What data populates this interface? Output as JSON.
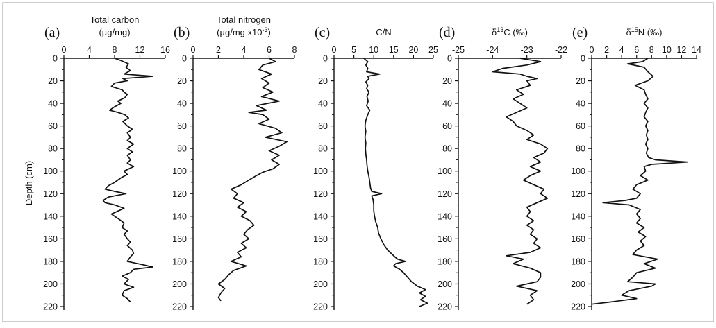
{
  "figure": {
    "y_axis_label": "Depth (cm)"
  },
  "chart_data": [
    {
      "type": "line",
      "panel": "(a)",
      "title": "Total carbon",
      "subtitle": "(µg/mg)",
      "xlim": [
        0,
        16
      ],
      "xticks": [
        0,
        4,
        8,
        12,
        16
      ],
      "ylim": [
        0,
        220
      ],
      "yticks": [
        0,
        20,
        40,
        60,
        80,
        100,
        120,
        140,
        160,
        180,
        200,
        220
      ],
      "series": [
        {
          "depth": [
            0,
            2,
            5,
            8,
            11,
            14,
            16,
            18,
            20,
            22,
            25,
            28,
            30,
            32,
            35,
            38,
            40,
            43,
            46,
            48,
            50,
            53,
            56,
            60,
            63,
            66,
            70,
            73,
            76,
            80,
            83,
            86,
            90,
            93,
            96,
            100,
            103,
            106,
            110,
            113,
            116,
            118,
            120,
            123,
            126,
            128,
            130,
            133,
            136,
            138,
            140,
            143,
            146,
            150,
            153,
            156,
            160,
            163,
            166,
            170,
            173,
            176,
            180,
            183,
            185,
            187,
            190,
            193,
            196,
            200,
            203,
            206,
            210,
            213,
            216
          ],
          "value": [
            8.0,
            9.0,
            10.2,
            9.8,
            10.5,
            9.5,
            14.0,
            9.3,
            10.0,
            8.0,
            7.5,
            9.2,
            9.5,
            10.0,
            9.6,
            8.5,
            9.0,
            8.0,
            7.2,
            8.5,
            9.6,
            10.2,
            9.3,
            10.0,
            10.8,
            10.0,
            10.5,
            10.0,
            11.0,
            10.0,
            10.8,
            10.0,
            10.5,
            10.0,
            11.0,
            9.5,
            10.0,
            9.0,
            8.0,
            7.0,
            6.5,
            8.0,
            9.8,
            7.0,
            6.2,
            6.5,
            8.0,
            9.5,
            8.3,
            7.5,
            8.0,
            8.8,
            9.5,
            9.2,
            10.0,
            9.5,
            10.0,
            10.5,
            10.0,
            10.8,
            11.0,
            10.5,
            10.0,
            12.5,
            14.0,
            11.0,
            10.5,
            9.2,
            10.2,
            9.5,
            11.0,
            9.5,
            9.2,
            10.0,
            10.5
          ]
        }
      ]
    },
    {
      "type": "line",
      "panel": "(b)",
      "title": "Total nitrogen",
      "subtitle": "(µg/mg x10",
      "subtitle_sup": "-3",
      "subtitle_end": ")",
      "xlim": [
        0,
        8
      ],
      "xticks": [
        0,
        2,
        4,
        6,
        8
      ],
      "ylim": [
        0,
        220
      ],
      "yticks": [
        0,
        20,
        40,
        60,
        80,
        100,
        120,
        140,
        160,
        180,
        200,
        220
      ],
      "series": [
        {
          "depth": [
            0,
            3,
            6,
            10,
            14,
            18,
            22,
            26,
            30,
            34,
            38,
            42,
            46,
            48,
            50,
            54,
            58,
            62,
            66,
            70,
            74,
            78,
            82,
            86,
            90,
            94,
            98,
            101,
            104,
            108,
            112,
            116,
            120,
            124,
            128,
            132,
            136,
            140,
            144,
            148,
            152,
            156,
            160,
            164,
            168,
            172,
            176,
            180,
            184,
            188,
            192,
            196,
            200,
            204,
            208,
            212,
            215
          ],
          "value": [
            6.0,
            6.5,
            5.5,
            5.2,
            6.2,
            5.4,
            6.0,
            5.5,
            6.3,
            5.4,
            6.8,
            5.0,
            5.8,
            4.4,
            5.5,
            6.0,
            5.2,
            6.5,
            7.0,
            5.7,
            7.4,
            6.8,
            6.0,
            6.8,
            6.2,
            6.8,
            6.3,
            5.5,
            5.0,
            4.4,
            3.8,
            3.0,
            3.5,
            3.2,
            4.0,
            3.5,
            4.2,
            3.8,
            4.5,
            4.8,
            4.3,
            4.0,
            4.4,
            3.8,
            4.2,
            3.5,
            3.8,
            3.0,
            4.2,
            3.2,
            2.8,
            2.5,
            2.0,
            2.5,
            2.2,
            2.0,
            2.2
          ]
        }
      ]
    },
    {
      "type": "line",
      "panel": "(c)",
      "title": "C/N",
      "xlim": [
        0,
        25
      ],
      "xticks": [
        0,
        5,
        10,
        15,
        20,
        25
      ],
      "ylim": [
        0,
        220
      ],
      "yticks": [
        0,
        20,
        40,
        60,
        80,
        100,
        120,
        140,
        160,
        180,
        200,
        220
      ],
      "series": [
        {
          "depth": [
            0,
            3,
            6,
            9,
            12,
            14,
            16,
            18,
            21,
            24,
            27,
            30,
            34,
            38,
            42,
            46,
            50,
            55,
            60,
            65,
            70,
            75,
            80,
            85,
            90,
            95,
            100,
            105,
            110,
            115,
            118,
            120,
            122,
            125,
            130,
            135,
            140,
            145,
            150,
            155,
            160,
            165,
            170,
            175,
            178,
            180,
            182,
            184,
            187,
            190,
            194,
            198,
            202,
            205,
            208,
            211,
            214,
            217,
            220
          ],
          "value": [
            7.5,
            8.5,
            8.0,
            8.5,
            8.2,
            11.5,
            8.5,
            8.8,
            8.0,
            8.5,
            8.2,
            8.8,
            8.3,
            8.6,
            8.2,
            9.0,
            8.5,
            8.0,
            7.8,
            8.0,
            7.8,
            8.0,
            7.9,
            8.0,
            8.2,
            8.3,
            8.5,
            8.8,
            9.0,
            9.2,
            9.5,
            12.0,
            9.5,
            9.8,
            10.0,
            10.0,
            10.2,
            10.5,
            11.0,
            11.2,
            11.8,
            12.5,
            13.5,
            15.0,
            16.0,
            18.0,
            15.5,
            15.0,
            16.5,
            17.5,
            18.5,
            19.5,
            21.0,
            23.0,
            21.5,
            23.0,
            21.8,
            23.5,
            21.5
          ]
        }
      ]
    },
    {
      "type": "line",
      "panel": "(d)",
      "title": "δ",
      "title_sup": "13",
      "title_end": "C (‰)",
      "xlim": [
        -25,
        -22
      ],
      "xticks": [
        -25,
        -24,
        -23,
        -22
      ],
      "ylim": [
        0,
        220
      ],
      "yticks": [
        0,
        20,
        40,
        60,
        80,
        100,
        120,
        140,
        160,
        180,
        200,
        220
      ],
      "series": [
        {
          "depth": [
            0,
            3,
            6,
            9,
            12,
            14,
            16,
            18,
            20,
            24,
            28,
            32,
            36,
            40,
            44,
            48,
            52,
            56,
            60,
            64,
            68,
            72,
            76,
            80,
            84,
            88,
            92,
            96,
            100,
            104,
            108,
            112,
            116,
            120,
            124,
            128,
            132,
            136,
            140,
            144,
            148,
            152,
            156,
            160,
            164,
            168,
            172,
            175,
            178,
            182,
            186,
            190,
            194,
            198,
            202,
            206,
            210,
            214,
            218
          ],
          "value": [
            -23.2,
            -22.6,
            -23.0,
            -23.7,
            -24.0,
            -23.2,
            -23.0,
            -22.7,
            -23.0,
            -22.9,
            -23.3,
            -23.1,
            -23.4,
            -23.2,
            -23.0,
            -23.3,
            -23.6,
            -23.4,
            -23.3,
            -23.0,
            -22.8,
            -23.0,
            -22.6,
            -22.4,
            -22.5,
            -22.8,
            -22.6,
            -22.9,
            -22.6,
            -22.9,
            -23.1,
            -22.8,
            -22.5,
            -22.6,
            -22.4,
            -22.7,
            -23.0,
            -22.9,
            -23.0,
            -22.8,
            -23.0,
            -22.8,
            -22.9,
            -22.7,
            -22.8,
            -22.6,
            -22.9,
            -23.6,
            -23.1,
            -23.4,
            -22.9,
            -22.6,
            -22.6,
            -22.7,
            -23.3,
            -22.7,
            -22.9,
            -22.8,
            -23.0
          ]
        }
      ]
    },
    {
      "type": "line",
      "panel": "(e)",
      "title": "δ",
      "title_sup": "15",
      "title_end": "N (‰)",
      "xlim": [
        0,
        14
      ],
      "xticks": [
        0,
        2,
        4,
        6,
        8,
        10,
        12,
        14
      ],
      "ylim": [
        0,
        220
      ],
      "yticks": [
        0,
        20,
        40,
        60,
        80,
        100,
        120,
        140,
        160,
        180,
        200,
        220
      ],
      "series": [
        {
          "depth": [
            0,
            3,
            5,
            8,
            12,
            16,
            20,
            24,
            28,
            32,
            36,
            40,
            44,
            48,
            52,
            56,
            60,
            64,
            68,
            72,
            76,
            80,
            84,
            88,
            90,
            92,
            94,
            96,
            100,
            104,
            108,
            112,
            116,
            120,
            124,
            126,
            128,
            130,
            134,
            138,
            142,
            146,
            150,
            154,
            158,
            162,
            166,
            170,
            174,
            178,
            182,
            186,
            190,
            194,
            198,
            200,
            202,
            206,
            210,
            213,
            216,
            218
          ],
          "value": [
            7.5,
            6.8,
            4.8,
            7.0,
            7.5,
            8.2,
            7.5,
            5.8,
            7.0,
            7.2,
            7.5,
            7.0,
            7.5,
            7.2,
            7.0,
            7.5,
            7.2,
            7.5,
            7.3,
            7.5,
            7.2,
            7.5,
            7.3,
            7.6,
            8.5,
            12.8,
            8.0,
            7.0,
            7.2,
            6.5,
            7.5,
            6.0,
            5.5,
            6.5,
            6.0,
            4.5,
            1.5,
            5.0,
            6.5,
            6.0,
            6.5,
            6.0,
            7.0,
            6.2,
            7.2,
            6.5,
            7.0,
            6.0,
            5.5,
            8.8,
            7.0,
            8.5,
            6.0,
            5.5,
            4.8,
            8.5,
            8.0,
            5.0,
            4.0,
            6.0,
            2.5,
            0.0
          ]
        }
      ]
    }
  ]
}
